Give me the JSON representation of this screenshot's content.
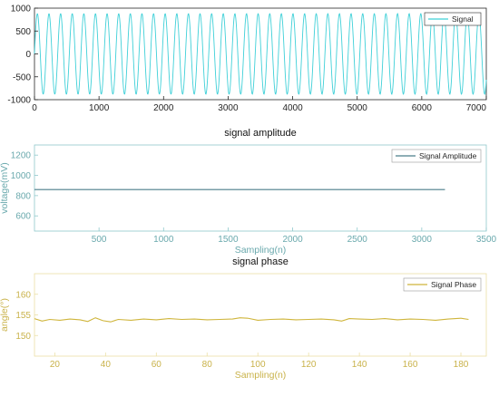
{
  "chart_data": [
    {
      "type": "line",
      "title": "",
      "xlabel": "",
      "ylabel": "",
      "xlim": [
        0,
        7000
      ],
      "ylim": [
        -1000,
        1000
      ],
      "x_ticks": [
        0,
        1000,
        2000,
        3000,
        4000,
        5000,
        6000,
        7000
      ],
      "y_ticks": [
        1000,
        500,
        0,
        -500,
        -1000
      ],
      "grid": false,
      "legend": "top-right",
      "series": [
        {
          "name": "Signal",
          "color": "#3fd0d8",
          "amplitude": 880,
          "period": 180,
          "x_start": 0,
          "x_end": 7000
        }
      ]
    },
    {
      "type": "line",
      "title": "signal amplitude",
      "xlabel": "Sampling(n)",
      "ylabel": "voltage(mV)",
      "xlim": [
        0,
        3500
      ],
      "ylim": [
        450,
        1300
      ],
      "x_ticks": [
        500,
        1000,
        1500,
        2000,
        2500,
        3000,
        3500
      ],
      "y_ticks": [
        1200,
        1000,
        800,
        600
      ],
      "grid": false,
      "legend": "top-right",
      "series": [
        {
          "name": "Signal Amplitude",
          "color": "#4a7d8a",
          "x": [
            0,
            3180
          ],
          "y": [
            860,
            860
          ]
        }
      ]
    },
    {
      "type": "line",
      "title": "signal phase",
      "xlabel": "Sampling(n)",
      "ylabel": "angle(°)",
      "xlim": [
        12,
        190
      ],
      "ylim": [
        145,
        165
      ],
      "x_ticks": [
        20,
        40,
        60,
        80,
        100,
        120,
        140,
        160,
        180
      ],
      "y_ticks": [
        160,
        155,
        150
      ],
      "grid": false,
      "legend": "top-right",
      "series": [
        {
          "name": "Signal Phase",
          "color": "#cfb53b",
          "x": [
            12,
            15,
            18,
            22,
            26,
            30,
            33,
            36,
            39,
            42,
            45,
            50,
            55,
            60,
            65,
            70,
            75,
            80,
            85,
            90,
            93,
            96,
            100,
            105,
            110,
            115,
            120,
            125,
            130,
            133,
            136,
            140,
            145,
            150,
            155,
            160,
            165,
            170,
            175,
            180,
            183
          ],
          "y": [
            154.1,
            153.5,
            153.9,
            153.7,
            154.0,
            153.8,
            153.4,
            154.3,
            153.6,
            153.3,
            153.9,
            153.7,
            154.0,
            153.8,
            154.1,
            153.9,
            154.0,
            153.8,
            153.9,
            154.0,
            154.3,
            154.2,
            153.7,
            153.9,
            154.0,
            153.8,
            153.9,
            154.0,
            153.8,
            153.5,
            154.1,
            154.0,
            153.9,
            154.1,
            153.8,
            154.0,
            153.9,
            153.7,
            154.0,
            154.2,
            153.9
          ]
        }
      ]
    }
  ]
}
